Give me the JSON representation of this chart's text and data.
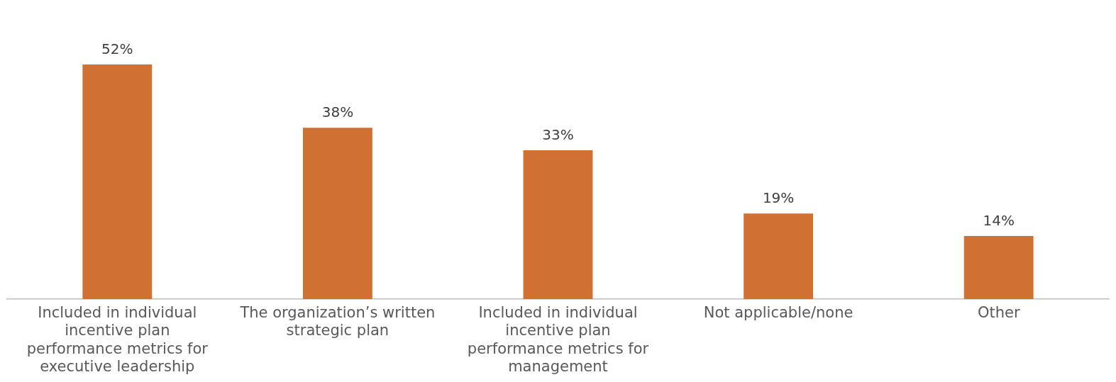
{
  "chart_data": {
    "type": "bar",
    "categories": [
      "Included in individual incentive plan performance metrics for executive leadership",
      "The organization’s written strategic plan",
      "Included in individual incentive plan performance metrics for management",
      "Not applicable/none",
      "Other"
    ],
    "values": [
      52,
      38,
      33,
      19,
      14
    ],
    "value_labels": [
      "52%",
      "38%",
      "33%",
      "19%",
      "14%"
    ],
    "color": "#d07032",
    "grid": false,
    "legend": false
  }
}
